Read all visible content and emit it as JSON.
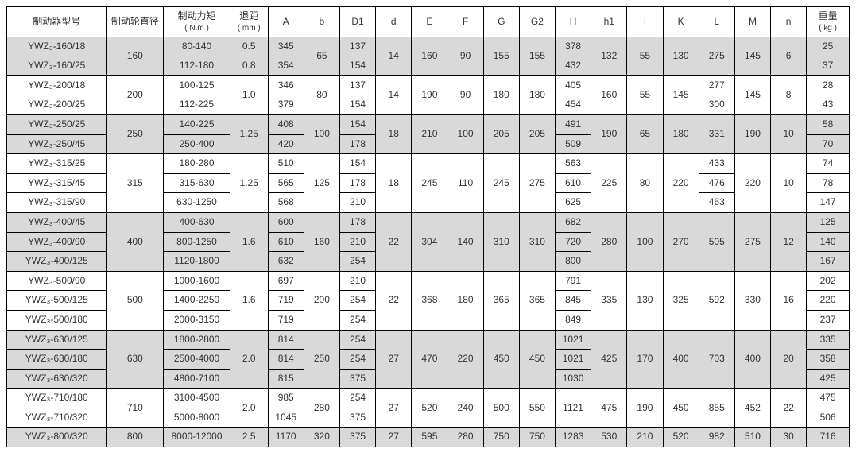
{
  "headers": {
    "model": "制动器型号",
    "diam": "制动轮直径",
    "torq": "制动力矩",
    "torq_u": "( N.m )",
    "gap": "退距",
    "gap_u": "( mm )",
    "A": "A",
    "b": "b",
    "D1": "D1",
    "d": "d",
    "E": "E",
    "F": "F",
    "G": "G",
    "G2": "G2",
    "H": "H",
    "h1": "h1",
    "i": "i",
    "K": "K",
    "L": "L",
    "M": "M",
    "n": "n",
    "wt": "重量",
    "wt_u": "( kg )"
  },
  "groups": [
    {
      "shade": true,
      "diam": "160",
      "b": "65",
      "d": "14",
      "E": "160",
      "F": "90",
      "G": "155",
      "G2": "155",
      "h1": "132",
      "i": "55",
      "K": "130",
      "L": "275",
      "M": "145",
      "n": "6",
      "rows": [
        {
          "model": "YWZ₃-160/18",
          "torq": "80-140",
          "gap": "0.5",
          "A": "345",
          "D1": "137",
          "H": "378",
          "wt": "25"
        },
        {
          "model": "YWZ₃-160/25",
          "torq": "112-180",
          "gap": "0.8",
          "A": "354",
          "D1": "154",
          "H": "432",
          "wt": "37"
        }
      ]
    },
    {
      "shade": false,
      "diam": "200",
      "gap": "1.0",
      "b": "80",
      "d": "14",
      "E": "190",
      "F": "90",
      "G": "180",
      "G2": "180",
      "h1": "160",
      "i": "55",
      "K": "145",
      "M": "145",
      "n": "8",
      "rows": [
        {
          "model": "YWZ₃-200/18",
          "torq": "100-125",
          "A": "346",
          "D1": "137",
          "H": "405",
          "L": "277",
          "wt": "28"
        },
        {
          "model": "YWZ₃-200/25",
          "torq": "112-225",
          "A": "379",
          "D1": "154",
          "H": "454",
          "L": "300",
          "wt": "43"
        }
      ]
    },
    {
      "shade": true,
      "diam": "250",
      "gap": "1.25",
      "b": "100",
      "d": "18",
      "E": "210",
      "F": "100",
      "G": "205",
      "G2": "205",
      "h1": "190",
      "i": "65",
      "K": "180",
      "L": "331",
      "M": "190",
      "n": "10",
      "rows": [
        {
          "model": "YWZ₃-250/25",
          "torq": "140-225",
          "A": "408",
          "D1": "154",
          "H": "491",
          "wt": "58"
        },
        {
          "model": "YWZ₃-250/45",
          "torq": "250-400",
          "A": "420",
          "D1": "178",
          "H": "509",
          "wt": "70"
        }
      ]
    },
    {
      "shade": false,
      "diam": "315",
      "gap": "1.25",
      "b": "125",
      "d": "18",
      "E": "245",
      "F": "110",
      "G": "245",
      "G2": "275",
      "h1": "225",
      "i": "80",
      "K": "220",
      "M": "220",
      "n": "10",
      "rows": [
        {
          "model": "YWZ₃-315/25",
          "torq": "180-280",
          "A": "510",
          "D1": "154",
          "H": "563",
          "L": "433",
          "wt": "74"
        },
        {
          "model": "YWZ₃-315/45",
          "torq": "315-630",
          "A": "565",
          "D1": "178",
          "H": "610",
          "L": "476",
          "wt": "78"
        },
        {
          "model": "YWZ₃-315/90",
          "torq": "630-1250",
          "A": "568",
          "D1": "210",
          "H": "625",
          "L": "463",
          "wt": "147"
        }
      ]
    },
    {
      "shade": true,
      "diam": "400",
      "gap": "1.6",
      "b": "160",
      "d": "22",
      "E": "304",
      "F": "140",
      "G": "310",
      "G2": "310",
      "h1": "280",
      "i": "100",
      "K": "270",
      "L": "505",
      "M": "275",
      "n": "12",
      "rows": [
        {
          "model": "YWZ₃-400/45",
          "torq": "400-630",
          "A": "600",
          "D1": "178",
          "H": "682",
          "wt": "125"
        },
        {
          "model": "YWZ₃-400/90",
          "torq": "800-1250",
          "A": "610",
          "D1": "210",
          "H": "720",
          "wt": "140"
        },
        {
          "model": "YWZ₃-400/125",
          "torq": "1120-1800",
          "A": "632",
          "D1": "254",
          "H": "800",
          "wt": "167"
        }
      ]
    },
    {
      "shade": false,
      "diam": "500",
      "gap": "1.6",
      "b": "200",
      "d": "22",
      "E": "368",
      "F": "180",
      "G": "365",
      "G2": "365",
      "h1": "335",
      "i": "130",
      "K": "325",
      "L": "592",
      "M": "330",
      "n": "16",
      "rows": [
        {
          "model": "YWZ₃-500/90",
          "torq": "1000-1600",
          "A": "697",
          "D1": "210",
          "H": "791",
          "wt": "202"
        },
        {
          "model": "YWZ₃-500/125",
          "torq": "1400-2250",
          "A": "719",
          "D1": "254",
          "H": "845",
          "wt": "220"
        },
        {
          "model": "YWZ₃-500/180",
          "torq": "2000-3150",
          "A": "719",
          "D1": "254",
          "H": "849",
          "wt": "237"
        }
      ]
    },
    {
      "shade": true,
      "diam": "630",
      "gap": "2.0",
      "b": "250",
      "d": "27",
      "E": "470",
      "F": "220",
      "G": "450",
      "G2": "450",
      "h1": "425",
      "i": "170",
      "K": "400",
      "L": "703",
      "M": "400",
      "n": "20",
      "rows": [
        {
          "model": "YWZ₃-630/125",
          "torq": "1800-2800",
          "A": "814",
          "D1": "254",
          "H": "1021",
          "wt": "335"
        },
        {
          "model": "YWZ₃-630/180",
          "torq": "2500-4000",
          "A": "814",
          "D1": "254",
          "H": "1021",
          "wt": "358"
        },
        {
          "model": "YWZ₃-630/320",
          "torq": "4800-7100",
          "A": "815",
          "D1": "375",
          "H": "1030",
          "wt": "425"
        }
      ]
    },
    {
      "shade": false,
      "diam": "710",
      "gap": "2.0",
      "b": "280",
      "d": "27",
      "E": "520",
      "F": "240",
      "G": "500",
      "G2": "550",
      "H": "1121",
      "h1": "475",
      "i": "190",
      "K": "450",
      "L": "855",
      "M": "452",
      "n": "22",
      "rows": [
        {
          "model": "YWZ₃-710/180",
          "torq": "3100-4500",
          "A": "985",
          "D1": "254",
          "wt": "475"
        },
        {
          "model": "YWZ₃-710/320",
          "torq": "5000-8000",
          "A": "1045",
          "D1": "375",
          "wt": "506"
        }
      ]
    },
    {
      "shade": true,
      "diam": "800",
      "gap": "2.5",
      "b": "320",
      "d": "27",
      "E": "595",
      "F": "280",
      "G": "750",
      "G2": "750",
      "h1": "530",
      "i": "210",
      "K": "520",
      "L": "982",
      "M": "510",
      "n": "30",
      "rows": [
        {
          "model": "YWZ₃-800/320",
          "torq": "8000-12000",
          "A": "1170",
          "D1": "375",
          "H": "1283",
          "wt": "716"
        }
      ]
    }
  ]
}
